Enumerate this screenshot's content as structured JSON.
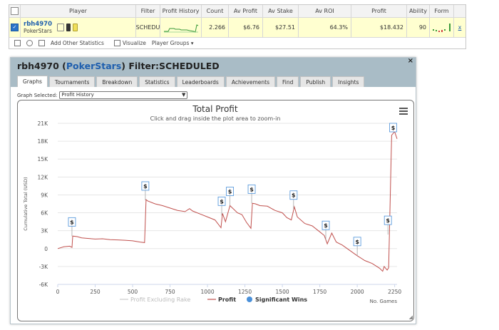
{
  "table": {
    "headers": [
      "",
      "Player",
      "Filter",
      "Profit History",
      "Count",
      "Av Profit",
      "Av Stake",
      "Av ROI",
      "Profit",
      "Ability",
      "Form",
      ""
    ],
    "row": {
      "player": "rbh4970",
      "site": "PokerStars",
      "filter": "SCHEDU",
      "count": "2.266",
      "av_profit": "$6.76",
      "av_stake": "$27.51",
      "av_roi": "64.3%",
      "profit": "$18.432",
      "ability": "90",
      "link": "x"
    },
    "toolbar": {
      "add_stats": "Add Other Statistics",
      "visualize": "Visualize",
      "player_groups": "Player Groups ▾"
    }
  },
  "panel": {
    "title_player": "rbh4970 (",
    "title_site": "PokerStars",
    "title_filter": ") Filter:SCHEDULED",
    "close": "×",
    "tabs": [
      "Graphs",
      "Tournaments",
      "Breakdown",
      "Statistics",
      "Leaderboards",
      "Achievements",
      "Find",
      "Publish",
      "Insights"
    ],
    "graph_selected_label": "Graph Selected:",
    "graph_selected_value": "Profit History"
  },
  "chart_data": {
    "type": "line",
    "title": "Total Profit",
    "subtitle": "Click and drag inside the plot area to zoom-in",
    "ylabel": "Cumulative Total (USD)",
    "xlabel": "No. Games",
    "xlim": [
      0,
      2266
    ],
    "ylim": [
      -6000,
      21000
    ],
    "x_ticks": [
      0,
      250,
      500,
      750,
      1000,
      1250,
      1500,
      1750,
      2000,
      2250
    ],
    "y_ticks": [
      -6000,
      -3000,
      0,
      3000,
      6000,
      9000,
      12000,
      15000,
      18000,
      21000
    ],
    "y_tick_labels": [
      "-6K",
      "-3K",
      "0",
      "3K",
      "6K",
      "9K",
      "12K",
      "15K",
      "18K",
      "21K"
    ],
    "legend": [
      "Profit Excluding Rake",
      "Profit",
      "Significant Wins"
    ],
    "legend_placement": "bottom",
    "colors": {
      "profit": "#c0504d",
      "profit_ex_rake": "#cccccc",
      "wins": "#4a90d9"
    },
    "series": [
      {
        "name": "Profit",
        "x": [
          0,
          40,
          80,
          95,
          100,
          130,
          160,
          200,
          250,
          300,
          350,
          400,
          450,
          500,
          550,
          580,
          590,
          600,
          650,
          700,
          750,
          800,
          850,
          880,
          900,
          950,
          1000,
          1050,
          1090,
          1100,
          1120,
          1150,
          1200,
          1230,
          1260,
          1290,
          1300,
          1320,
          1350,
          1400,
          1450,
          1500,
          1530,
          1560,
          1580,
          1600,
          1650,
          1700,
          1750,
          1780,
          1800,
          1830,
          1860,
          1900,
          1950,
          2000,
          2050,
          2100,
          2150,
          2170,
          2180,
          2200,
          2210,
          2230,
          2250,
          2266
        ],
        "values": [
          0,
          300,
          400,
          200,
          2100,
          2000,
          1800,
          1700,
          1600,
          1650,
          1500,
          1450,
          1400,
          1300,
          1100,
          1000,
          8200,
          8000,
          7500,
          7200,
          6800,
          6400,
          6200,
          6700,
          6300,
          5800,
          5300,
          4800,
          3500,
          5900,
          4500,
          7200,
          6000,
          5700,
          4400,
          3400,
          7600,
          7500,
          7200,
          7100,
          6400,
          6000,
          5200,
          4800,
          7000,
          5300,
          4200,
          3800,
          2800,
          2200,
          800,
          2600,
          1100,
          600,
          -300,
          -1200,
          -2000,
          -2500,
          -3300,
          -3800,
          -3000,
          -3600,
          -3200,
          19000,
          19600,
          18400
        ]
      }
    ],
    "significant_wins_x": [
      95,
      585,
      1095,
      1150,
      1295,
      1575,
      1790,
      2000,
      2205,
      2240
    ]
  }
}
